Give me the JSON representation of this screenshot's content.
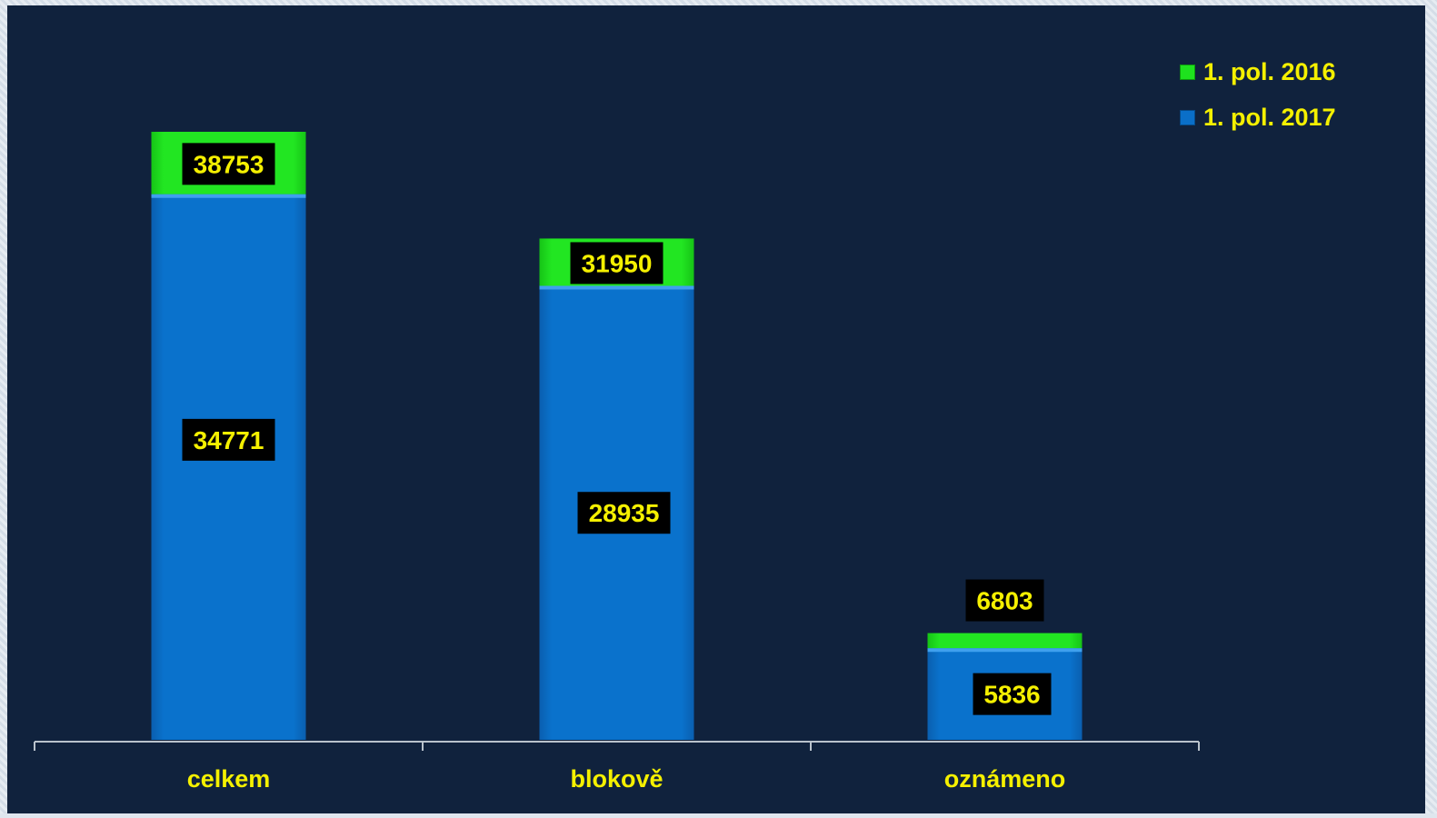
{
  "colors": {
    "background": "#10223d",
    "series_2016": "#1ee21e",
    "series_2017": "#0a6fc8",
    "label_text": "#f5f000",
    "label_box": "#000000",
    "axis": "#b9c2cc"
  },
  "legend": {
    "items": [
      {
        "label": "1. pol. 2016",
        "color": "#1ee21e"
      },
      {
        "label": "1. pol. 2017",
        "color": "#0a6fc8"
      }
    ]
  },
  "chart_data": {
    "type": "bar",
    "layout": "overlapping",
    "categories": [
      "celkem",
      "blokově",
      "oznámeno"
    ],
    "series": [
      {
        "name": "1. pol. 2016",
        "values": [
          38753,
          31950,
          6803
        ],
        "color": "#1ee21e"
      },
      {
        "name": "1. pol. 2017",
        "values": [
          34771,
          28935,
          5836
        ],
        "color": "#0a6fc8"
      }
    ],
    "ylim": [
      0,
      42000
    ],
    "grid": false,
    "legend_position": "top-right",
    "title": "",
    "xlabel": "",
    "ylabel": ""
  }
}
